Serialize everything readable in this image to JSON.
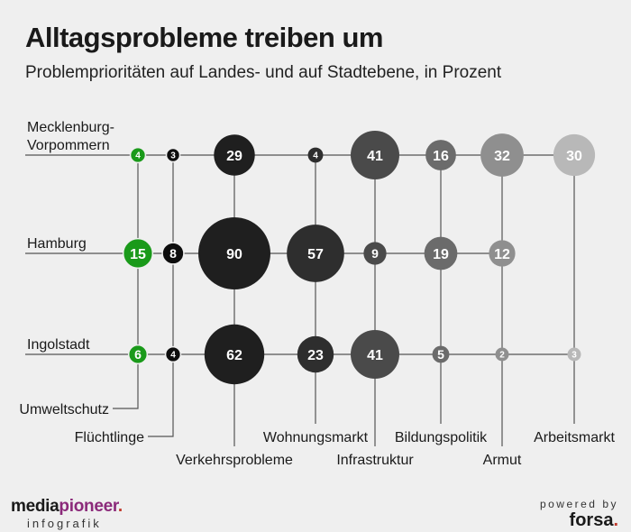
{
  "header": {
    "title": "Alltagsprobleme treiben um",
    "subtitle": "Problemprioritäten auf Landes- und auf Stadtebene, in Prozent"
  },
  "footer": {
    "brand_part1": "media",
    "brand_part2": "pioneer",
    "brand_dot": ".",
    "brand_sub": "infografik",
    "powered": "powered by",
    "forsa": "forsa",
    "forsa_dot": "."
  },
  "chart_data": {
    "type": "bubble-matrix",
    "title": "Alltagsprobleme treiben um",
    "subtitle": "Problemprioritäten auf Landes- und auf Stadtebene, in Prozent",
    "rows": [
      "Mecklenburg-Vorpommern",
      "Hamburg",
      "Ingolstadt"
    ],
    "categories": [
      "Umweltschutz",
      "Flüchtlinge",
      "Verkehrsprobleme",
      "Wohnungsmarkt",
      "Infrastruktur",
      "Bildungspolitik",
      "Armut",
      "Arbeitsmarkt"
    ],
    "category_colors": [
      "#1a9a1a",
      "#0d0d0d",
      "#1f1f1f",
      "#2e2e2e",
      "#4a4a4a",
      "#6b6b6b",
      "#8f8f8f",
      "#b8b8b8"
    ],
    "values": [
      [
        4,
        3,
        29,
        4,
        41,
        16,
        32,
        30
      ],
      [
        15,
        8,
        90,
        57,
        9,
        19,
        12,
        null
      ],
      [
        6,
        4,
        62,
        23,
        41,
        5,
        2,
        3
      ]
    ]
  }
}
